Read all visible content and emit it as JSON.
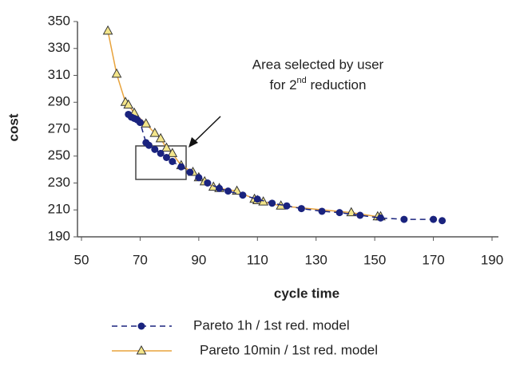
{
  "chart_data": {
    "type": "line",
    "xlabel": "cycle time",
    "ylabel": "cost",
    "xlim": [
      50,
      190
    ],
    "xticks": [
      50,
      70,
      90,
      110,
      130,
      150,
      170,
      190
    ],
    "ylim": [
      190,
      350
    ],
    "yticks": [
      190,
      210,
      230,
      250,
      270,
      290,
      310,
      330,
      350
    ],
    "grid": false,
    "annotation": {
      "line1": "Area selected by user",
      "line2_start": "for 2",
      "line2_sup": "nd",
      "line2_end": " reduction"
    },
    "series": [
      {
        "name": "Pareto 1h / 1st red. model",
        "color": "#1a237e",
        "marker": "circle",
        "dash": true,
        "x": [
          66,
          67,
          68,
          69,
          70,
          72,
          73,
          75,
          77,
          79,
          81,
          84,
          87,
          90,
          93,
          97,
          100,
          105,
          110,
          115,
          120,
          125,
          132,
          138,
          145,
          152,
          160,
          170,
          173
        ],
        "values": [
          281,
          279,
          278,
          277,
          275,
          260,
          258,
          255,
          252,
          249,
          246,
          242,
          238,
          234,
          230,
          226,
          224,
          221,
          218,
          215,
          213,
          211,
          209,
          208,
          206,
          204,
          203,
          203,
          202
        ]
      },
      {
        "name": "Pareto 10min / 1st red. model",
        "color": "#e8a33c",
        "marker": "triangle",
        "dash": false,
        "x": [
          59,
          62,
          65,
          66,
          68,
          72,
          75,
          77,
          79,
          81,
          84,
          88,
          90,
          92,
          95,
          97,
          103,
          109,
          110,
          112,
          118,
          142,
          151,
          152
        ],
        "values": [
          343,
          311,
          290,
          288,
          282,
          274,
          267,
          263,
          256,
          252,
          243,
          238,
          234,
          231,
          227,
          226,
          224,
          218,
          217,
          216,
          213,
          208,
          205,
          205
        ]
      }
    ]
  }
}
